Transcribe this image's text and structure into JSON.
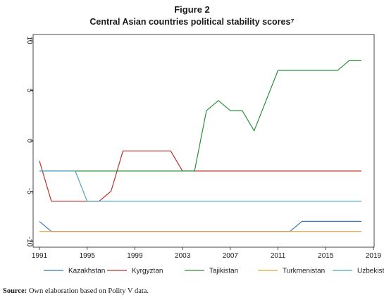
{
  "figure": {
    "title": "Figure 2",
    "subtitle": "Central Asian countries political stability scores⁷"
  },
  "source": {
    "label": "Source:",
    "text": " Own elaboration based on Polity V data."
  },
  "chart_data": {
    "type": "line",
    "title": "Central Asian countries political stability scores⁷",
    "xlabel": "",
    "ylabel": "",
    "xlim": [
      1991,
      2019
    ],
    "ylim": [
      -10,
      10
    ],
    "x_ticks": [
      1991,
      1995,
      1999,
      2003,
      2007,
      2011,
      2015,
      2019
    ],
    "y_ticks": [
      -10,
      -5,
      0,
      5,
      10
    ],
    "grid": false,
    "legend_position": "bottom",
    "series": [
      {
        "name": "Kazakhstan",
        "color": "#3a77c7",
        "points": [
          [
            1991,
            -8
          ],
          [
            1992,
            -9
          ],
          [
            1993,
            -9
          ],
          [
            2012,
            -9
          ],
          [
            2013,
            -8
          ],
          [
            2018,
            -8
          ]
        ]
      },
      {
        "name": "Kyrgyztan",
        "color": "#b5342b",
        "points": [
          [
            1991,
            -2
          ],
          [
            1992,
            -6
          ],
          [
            1996,
            -6
          ],
          [
            1997,
            -5
          ],
          [
            1998,
            -1
          ],
          [
            2002,
            -1
          ],
          [
            2003,
            -3
          ],
          [
            2018,
            -3
          ]
        ]
      },
      {
        "name": "Tajikistan",
        "color": "#2b8f3a",
        "points": [
          [
            1991,
            -3
          ],
          [
            2004,
            -3
          ],
          [
            2005,
            3
          ],
          [
            2006,
            4
          ],
          [
            2007,
            3
          ],
          [
            2008,
            3
          ],
          [
            2009,
            1
          ],
          [
            2011,
            7
          ],
          [
            2016,
            7
          ],
          [
            2017,
            8
          ],
          [
            2018,
            8
          ]
        ]
      },
      {
        "name": "Turkmenistan",
        "color": "#e8a33c",
        "points": [
          [
            1991,
            -9
          ],
          [
            2018,
            -9
          ]
        ]
      },
      {
        "name": "Uzbekistan",
        "color": "#4aa3c8",
        "points": [
          [
            1991,
            -3
          ],
          [
            1994,
            -3
          ],
          [
            1995,
            -6
          ],
          [
            2018,
            -6
          ]
        ]
      }
    ]
  }
}
